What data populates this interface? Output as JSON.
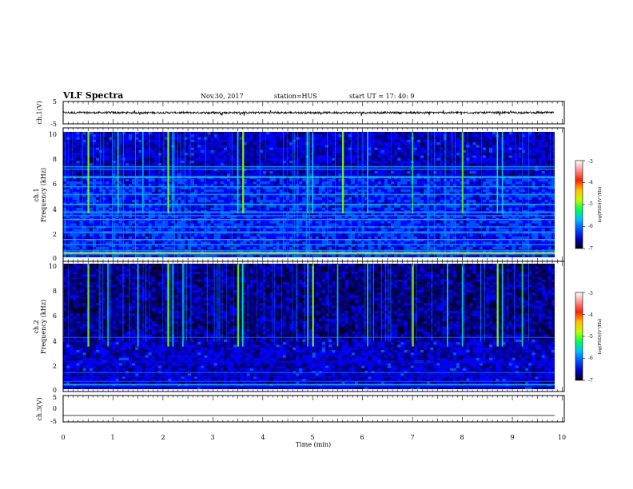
{
  "header": {
    "title": "VLF Spectra",
    "date": "Nov.30, 2017",
    "station": "station=HUS",
    "start_ut": "start UT =   17: 40: 9"
  },
  "colors": {
    "spectrogram_scale": [
      "#000033",
      "#00008b",
      "#0000ff",
      "#0050ff",
      "#00a0ff",
      "#00e0e0",
      "#00ff80",
      "#80ff00",
      "#ffff00",
      "#ff8000",
      "#ff0000",
      "#ffffff"
    ],
    "colorbar_gradient": [
      "#000000",
      "#0000c0",
      "#0050ff",
      "#00c0ff",
      "#00ff60",
      "#c0ff00",
      "#ffc000",
      "#ff2000",
      "#ff9090",
      "#ffffff"
    ],
    "trace": "#000000"
  },
  "chart_data": [
    {
      "type": "line",
      "panel": "ch1-waveform",
      "ylabel": "ch.1(V)",
      "ylim": [
        -5,
        5
      ],
      "yticks": [
        "5",
        "-5"
      ],
      "xlim": [
        0,
        10
      ],
      "baseline_value": 0,
      "noise_amplitude": 0.45
    },
    {
      "type": "heatmap",
      "panel": "ch1-spectrogram",
      "ylabel": [
        "ch.1",
        "Frequency (kHz)"
      ],
      "ylim": [
        0,
        10
      ],
      "yticks": [
        "0",
        "2",
        "4",
        "6",
        "8",
        "10"
      ],
      "xlim": [
        0,
        10
      ],
      "colorbar": {
        "label": "log(PSD)(V²/Hz)",
        "ticks": [
          "-3",
          "-4",
          "-5",
          "-6",
          "-7"
        ],
        "range": [
          -7,
          -3
        ]
      },
      "horizontal_bands_khz": [
        0.3,
        0.5,
        1.0,
        1.4,
        2.0,
        2.4,
        3.0,
        3.3,
        3.6,
        4.2,
        5.0,
        5.6,
        6.4,
        7.0,
        7.2
      ],
      "vertical_bursts_min": [
        0.5,
        1.1,
        1.6,
        2.1,
        2.2,
        3.5,
        3.6,
        4.9,
        5.0,
        5.6,
        6.1,
        7.0,
        8.0,
        8.7,
        8.8
      ]
    },
    {
      "type": "heatmap",
      "panel": "ch2-spectrogram",
      "ylabel": [
        "ch.2",
        "Frequency (kHz)"
      ],
      "ylim": [
        0,
        10
      ],
      "yticks": [
        "0",
        "2",
        "4",
        "6",
        "8",
        "10"
      ],
      "xlim": [
        0,
        10
      ],
      "colorbar": {
        "label": "log(PSD)(V²/Hz)",
        "ticks": [
          "-3",
          "-4",
          "-5",
          "-6",
          "-7"
        ],
        "range": [
          -7,
          -3
        ]
      },
      "horizontal_bands_khz": [
        0.2,
        0.6,
        1.0,
        1.3,
        2.2,
        4.1
      ],
      "vertical_bursts_min": [
        0.5,
        0.9,
        1.5,
        2.1,
        2.2,
        2.4,
        3.5,
        3.6,
        4.9,
        5.0,
        5.5,
        6.1,
        7.0,
        7.7,
        8.0,
        8.7,
        8.8,
        9.2
      ]
    },
    {
      "type": "line",
      "panel": "ch3-waveform",
      "ylabel": "ch.3(V)",
      "ylim": [
        -5,
        5
      ],
      "yticks": [
        "5",
        "0",
        "-5"
      ],
      "xlim": [
        0,
        10
      ],
      "baseline_value": -2.5,
      "noise_amplitude": 0
    }
  ],
  "xaxis": {
    "label": "Time (min)",
    "ticks": [
      "0",
      "1",
      "2",
      "3",
      "4",
      "5",
      "6",
      "7",
      "8",
      "9",
      "10"
    ]
  }
}
